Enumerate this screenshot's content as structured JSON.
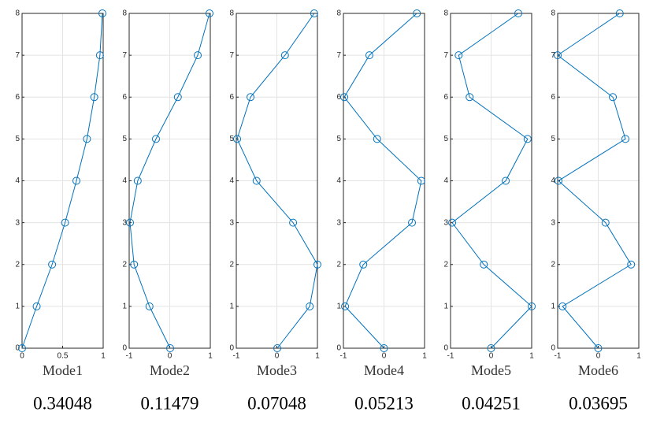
{
  "chart_data": [
    {
      "type": "line",
      "x": [
        0,
        0.18,
        0.37,
        0.53,
        0.67,
        0.8,
        0.89,
        0.96,
        0.99
      ],
      "values": [
        0,
        1,
        2,
        3,
        4,
        5,
        6,
        7,
        8
      ],
      "xlim": [
        0,
        1
      ],
      "xticks": [
        0,
        0.5,
        1
      ],
      "ylim": [
        0,
        8
      ],
      "yticks": [
        0,
        1,
        2,
        3,
        4,
        5,
        6,
        7,
        8
      ],
      "color": "#0072bd",
      "marker": "circle",
      "grid": true,
      "xlabel": "Mode1",
      "annotation": "0.34048"
    },
    {
      "type": "line",
      "x": [
        0.01,
        -0.5,
        -0.88,
        -0.98,
        -0.79,
        -0.34,
        0.2,
        0.69,
        0.98
      ],
      "values": [
        0,
        1,
        2,
        3,
        4,
        5,
        6,
        7,
        8
      ],
      "xlim": [
        -1,
        1
      ],
      "xticks": [
        -1,
        0,
        1
      ],
      "ylim": [
        0,
        8
      ],
      "yticks": [
        0,
        1,
        2,
        3,
        4,
        5,
        6,
        7,
        8
      ],
      "color": "#0072bd",
      "marker": "circle",
      "grid": true,
      "xlabel": "Mode2",
      "annotation": "0.11479"
    },
    {
      "type": "line",
      "x": [
        0.01,
        0.81,
        1,
        0.4,
        -0.5,
        -0.98,
        -0.65,
        0.2,
        0.92
      ],
      "values": [
        0,
        1,
        2,
        3,
        4,
        5,
        6,
        7,
        8
      ],
      "xlim": [
        -1,
        1
      ],
      "xticks": [
        -1,
        0,
        1
      ],
      "ylim": [
        0,
        8
      ],
      "yticks": [
        0,
        1,
        2,
        3,
        4,
        5,
        6,
        7,
        8
      ],
      "color": "#0072bd",
      "marker": "circle",
      "grid": true,
      "xlabel": "Mode3",
      "annotation": "0.07048"
    },
    {
      "type": "line",
      "x": [
        0,
        -0.96,
        -0.51,
        0.69,
        0.92,
        -0.17,
        -0.98,
        -0.36,
        0.81
      ],
      "values": [
        0,
        1,
        2,
        3,
        4,
        5,
        6,
        7,
        8
      ],
      "xlim": [
        -1,
        1
      ],
      "xticks": [
        -1,
        0,
        1
      ],
      "ylim": [
        0,
        8
      ],
      "yticks": [
        0,
        1,
        2,
        3,
        4,
        5,
        6,
        7,
        8
      ],
      "color": "#0072bd",
      "marker": "circle",
      "grid": true,
      "xlabel": "Mode4",
      "annotation": "0.05213"
    },
    {
      "type": "line",
      "x": [
        0,
        1,
        -0.18,
        -0.96,
        0.36,
        0.9,
        -0.53,
        -0.8,
        0.67
      ],
      "values": [
        0,
        1,
        2,
        3,
        4,
        5,
        6,
        7,
        8
      ],
      "xlim": [
        -1,
        1
      ],
      "xticks": [
        -1,
        0,
        1
      ],
      "ylim": [
        0,
        8
      ],
      "yticks": [
        0,
        1,
        2,
        3,
        4,
        5,
        6,
        7,
        8
      ],
      "color": "#0072bd",
      "marker": "circle",
      "grid": true,
      "xlabel": "Mode5",
      "annotation": "0.04251"
    },
    {
      "type": "line",
      "x": [
        0,
        -0.88,
        0.81,
        0.18,
        -0.98,
        0.67,
        0.36,
        -1,
        0.53
      ],
      "values": [
        0,
        1,
        2,
        3,
        4,
        5,
        6,
        7,
        8
      ],
      "xlim": [
        -1,
        1
      ],
      "xticks": [
        -1,
        0,
        1
      ],
      "ylim": [
        0,
        8
      ],
      "yticks": [
        0,
        1,
        2,
        3,
        4,
        5,
        6,
        7,
        8
      ],
      "color": "#0072bd",
      "marker": "circle",
      "grid": true,
      "xlabel": "Mode6",
      "annotation": "0.03695"
    }
  ]
}
